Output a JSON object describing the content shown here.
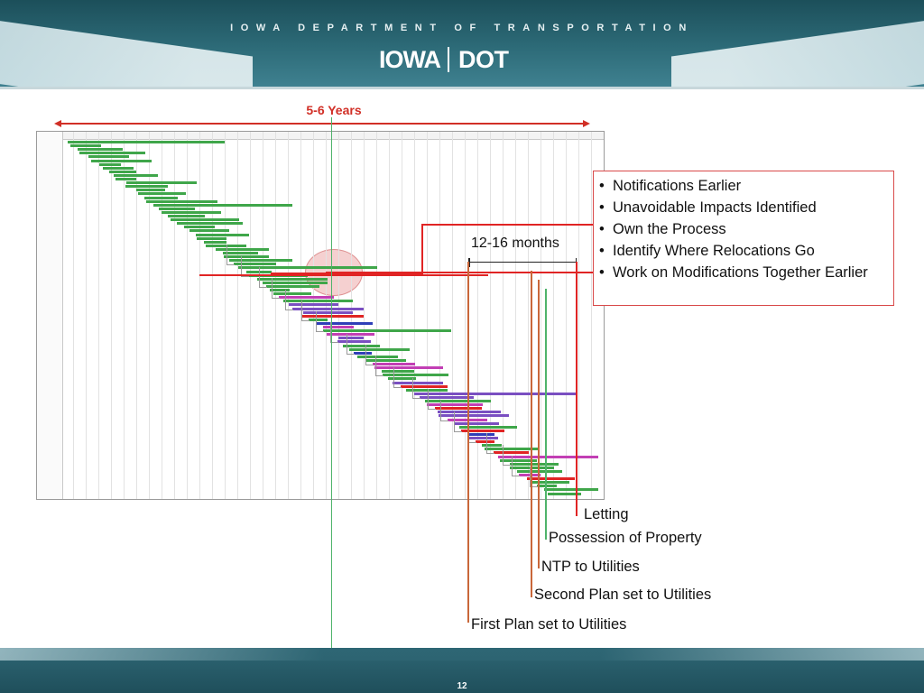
{
  "header": {
    "agency": "IOWA DEPARTMENT OF TRANSPORTATION",
    "logo": {
      "mark": "IOWA",
      "dot": "DOT"
    }
  },
  "timeline": {
    "total_label": "5-6 Years",
    "window_label": "12-16 months"
  },
  "notes": {
    "items": [
      "Notifications Earlier",
      "Unavoidable Impacts Identified",
      "Own the Process",
      "Identify Where Relocations Go",
      "Work on Modifications Together Earlier"
    ]
  },
  "milestones": {
    "letting": "Letting",
    "possession": "Possession of Property",
    "ntp": "NTP to Utilities",
    "second_plan": "Second Plan set to Utilities",
    "first_plan": "First Plan set to Utilities"
  },
  "colors": {
    "red": "#d12f26",
    "green": "#4fb36b",
    "orange": "#c9673a",
    "teal": "#1f4f5b"
  },
  "footer": {
    "page_number": "12"
  }
}
